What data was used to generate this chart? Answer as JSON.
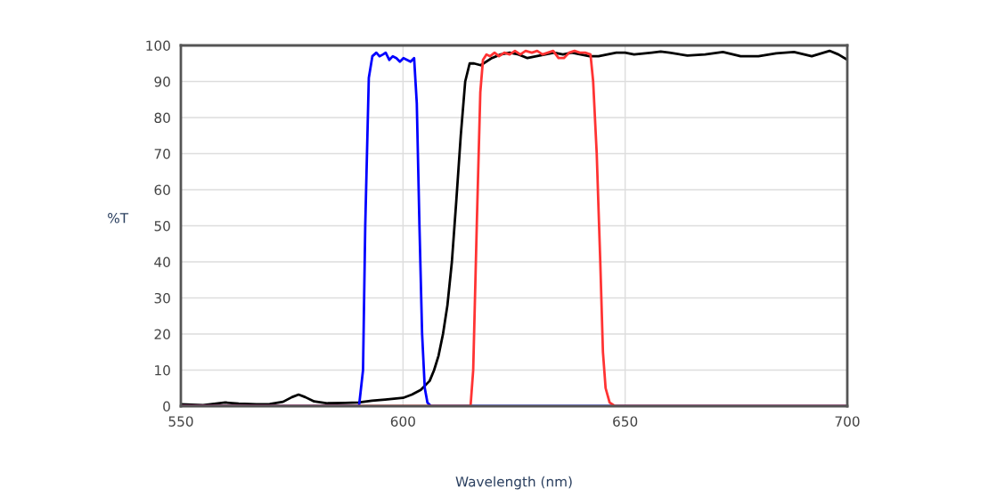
{
  "chart_data": {
    "type": "line",
    "xlabel": "Wavelength (nm)",
    "ylabel": "%T",
    "xlim": [
      550,
      700
    ],
    "xticks": [
      550,
      600,
      650,
      700
    ],
    "ylim": [
      0,
      100
    ],
    "yticks": [
      0,
      10,
      20,
      30,
      40,
      50,
      60,
      70,
      80,
      90,
      100
    ],
    "grid": true,
    "legend": false,
    "marker": "none",
    "line_style": "solid",
    "series": [
      {
        "color": "#000000",
        "x": [
          550,
          555,
          560,
          563,
          567,
          570,
          573,
          575,
          576.5,
          578,
          580,
          583,
          587,
          590,
          593,
          596,
          600,
          602,
          604,
          606,
          607,
          608,
          609,
          610,
          611,
          612,
          613,
          614,
          615,
          616,
          617.5,
          620,
          622,
          624,
          626,
          628,
          630,
          632,
          634,
          636,
          638,
          640,
          642,
          644,
          646,
          648,
          650,
          652,
          656,
          658,
          660,
          664,
          668,
          672,
          676,
          680,
          684,
          688,
          692,
          696,
          698,
          700
        ],
        "values": [
          0.5,
          0.3,
          1,
          0.7,
          0.5,
          0.6,
          1.2,
          2.5,
          3.2,
          2.5,
          1.3,
          0.8,
          0.9,
          1.0,
          1.5,
          1.8,
          2.3,
          3.2,
          4.5,
          7,
          10,
          14,
          20,
          28,
          40,
          57,
          75,
          90,
          95,
          95,
          94.5,
          96.5,
          97.5,
          98,
          97.5,
          96.5,
          97,
          97.5,
          98,
          97.5,
          98,
          97.5,
          97,
          97,
          97.5,
          98,
          98,
          97.5,
          98,
          98.3,
          98,
          97.2,
          97.5,
          98.2,
          97,
          97,
          97.8,
          98.2,
          97,
          98.5,
          97.5,
          96
        ]
      },
      {
        "color": "#0000ff",
        "x": [
          550,
          590.1,
          591,
          591.5,
          592.3,
          593.1,
          594,
          594.7,
          595.5,
          596.1,
          596.9,
          597.7,
          598.5,
          599.3,
          600.1,
          600.9,
          601.7,
          602.5,
          603.1,
          603.7,
          604.3,
          604.9,
          605.5,
          606.3,
          700
        ],
        "values": [
          0,
          0,
          10,
          50,
          91,
          97,
          98,
          97,
          97.5,
          98,
          96,
          97,
          96.5,
          95.5,
          96.5,
          96,
          95.5,
          96.5,
          84,
          50,
          20,
          5,
          1,
          0,
          0
        ]
      },
      {
        "color": "#ff3333",
        "x": [
          550,
          615.2,
          615.8,
          616.6,
          617.4,
          618,
          618.8,
          619.6,
          620.6,
          621.6,
          622.8,
          624,
          625.2,
          626.4,
          627.6,
          629,
          630.2,
          631.4,
          632.6,
          633.8,
          635,
          636.2,
          637.4,
          638.6,
          639.8,
          641,
          642.2,
          642.8,
          643.6,
          644.4,
          645,
          645.6,
          646.5,
          647.7,
          700
        ],
        "values": [
          0,
          0,
          10,
          50,
          87,
          96,
          97.5,
          97,
          98,
          97,
          98,
          97.5,
          98.5,
          97.5,
          98.5,
          98,
          98.5,
          97.5,
          98,
          98.5,
          96.5,
          96.5,
          98,
          98.5,
          98,
          98,
          97.5,
          90,
          70,
          40,
          15,
          5,
          1,
          0,
          0
        ]
      }
    ]
  }
}
